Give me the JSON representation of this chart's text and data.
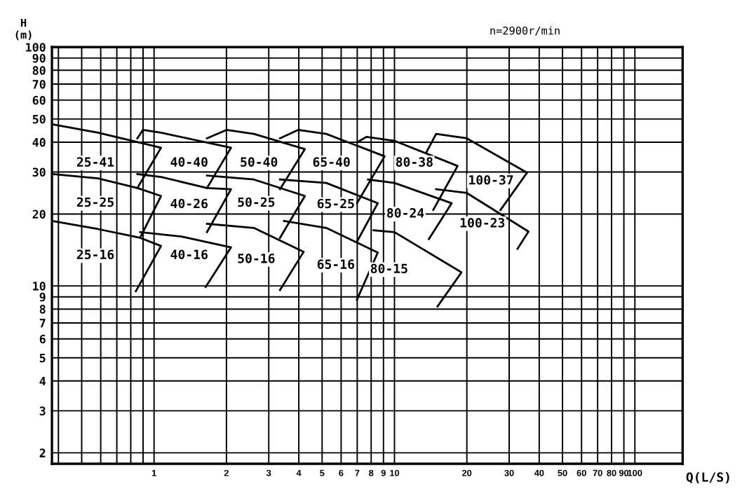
{
  "chart_data": {
    "type": "line",
    "xlabel": "Q(L/S)",
    "ylabel": "H\n(m)",
    "log": "xy",
    "grid": true,
    "marker": "none",
    "line_style": "solid",
    "xlim": [
      0.376,
      158
    ],
    "ylim": [
      1.8,
      100
    ],
    "xticks": [
      {
        "value": 0.4,
        "label": null
      },
      {
        "value": 0.5,
        "label": null
      },
      {
        "value": 0.6,
        "label": null
      },
      {
        "value": 0.7,
        "label": null
      },
      {
        "value": 0.8,
        "label": null
      },
      {
        "value": 0.9,
        "label": null
      },
      1,
      2,
      3,
      4,
      5,
      6,
      7,
      8,
      9,
      10,
      20,
      30,
      40,
      50,
      60,
      70,
      80,
      90,
      100
    ],
    "yticks": [
      2,
      3,
      4,
      5,
      6,
      7,
      8,
      9,
      10,
      20,
      30,
      40,
      50,
      60,
      70,
      80,
      90,
      100
    ],
    "series": [
      {
        "color": "#000000",
        "x": [
          0.376,
          0.585,
          1.069,
          0.852
        ],
        "values": [
          47.5,
          43.8,
          37.9,
          25.7
        ]
      },
      {
        "color": "#000000",
        "x": [
          0.376,
          0.585,
          0.852,
          1.069,
          0.875
        ],
        "values": [
          29.4,
          28.2,
          25.7,
          23.8,
          15.9
        ]
      },
      {
        "color": "#000000",
        "x": [
          0.376,
          0.585,
          0.875,
          1.069,
          0.84
        ],
        "values": [
          18.7,
          17.3,
          15.9,
          14.7,
          9.5
        ]
      },
      {
        "color": "#000000",
        "x": [
          0.852,
          0.898,
          1.069,
          2.09,
          1.66
        ],
        "values": [
          41.5,
          45.0,
          43.8,
          37.9,
          25.7
        ]
      },
      {
        "color": "#000000",
        "x": [
          0.852,
          1.069,
          1.66,
          2.09,
          1.66
        ],
        "values": [
          29.4,
          28.6,
          25.7,
          25.4,
          16.8
        ]
      },
      {
        "color": "#000000",
        "x": [
          0.875,
          1.3,
          2.09,
          1.64
        ],
        "values": [
          16.8,
          16.1,
          14.5,
          9.9
        ]
      },
      {
        "color": "#000000",
        "x": [
          1.66,
          2.0,
          2.6,
          4.24,
          3.34
        ],
        "values": [
          41.5,
          45.0,
          43.3,
          37.4,
          25.4
        ]
      },
      {
        "color": "#000000",
        "x": [
          1.66,
          2.6,
          4.24,
          3.34
        ],
        "values": [
          29.0,
          27.9,
          23.8,
          15.9
        ]
      },
      {
        "color": "#000000",
        "x": [
          1.66,
          2.6,
          4.19,
          3.34
        ],
        "values": [
          18.2,
          17.5,
          13.9,
          9.6
        ]
      },
      {
        "color": "#000000",
        "x": [
          3.34,
          3.97,
          5.2,
          9.1,
          6.98
        ],
        "values": [
          41.5,
          45.0,
          43.3,
          34.9,
          22.2
        ]
      },
      {
        "color": "#000000",
        "x": [
          3.34,
          5.2,
          8.52,
          6.98
        ],
        "values": [
          27.9,
          27.0,
          22.2,
          15.3
        ]
      },
      {
        "color": "#000000",
        "x": [
          3.47,
          5.2,
          8.52,
          6.98
        ],
        "values": [
          18.7,
          17.5,
          13.8,
          8.75
        ]
      },
      {
        "color": "#000000",
        "x": [
          6.98,
          7.65,
          10,
          18.3,
          14.5
        ],
        "values": [
          39.9,
          42.1,
          40.5,
          31.8,
          20.8
        ]
      },
      {
        "color": "#000000",
        "x": [
          7.76,
          10,
          17.3,
          13.9
        ],
        "values": [
          27.9,
          27.0,
          22.2,
          15.7
        ]
      },
      {
        "color": "#000000",
        "x": [
          8.18,
          10,
          19.0,
          15.1
        ],
        "values": [
          17.1,
          16.8,
          11.4,
          8.2
        ]
      },
      {
        "color": "#000000",
        "x": [
          13.6,
          14.9,
          20,
          35.6,
          27.6
        ],
        "values": [
          36.4,
          43.3,
          41.5,
          29.8,
          20.8
        ]
      },
      {
        "color": "#000000",
        "x": [
          14.9,
          20,
          36.1,
          32.5
        ],
        "values": [
          25.4,
          24.5,
          16.9,
          14.3
        ]
      }
    ],
    "annotations": [
      "n=2900r/min",
      {
        "text": "25-41",
        "x": 0.57,
        "y": 32.7
      },
      {
        "text": "40-40",
        "x": 1.4,
        "y": 32.7
      },
      {
        "text": "50-40",
        "x": 2.73,
        "y": 32.7
      },
      {
        "text": "65-40",
        "x": 5.47,
        "y": 32.7
      },
      {
        "text": "80-38",
        "x": 12.1,
        "y": 32.7
      },
      {
        "text": "100-37",
        "x": 25.2,
        "y": 27.5
      },
      {
        "text": "25-25",
        "x": 0.57,
        "y": 22.2
      },
      {
        "text": "40-26",
        "x": 1.4,
        "y": 21.9
      },
      {
        "text": "50-25",
        "x": 2.66,
        "y": 22.2
      },
      {
        "text": "65-25",
        "x": 5.7,
        "y": 21.9
      },
      {
        "text": "80-24",
        "x": 11.1,
        "y": 20.0
      },
      {
        "text": "100-23",
        "x": 23.2,
        "y": 18.2
      },
      {
        "text": "25-16",
        "x": 0.57,
        "y": 13.4
      },
      {
        "text": "40-16",
        "x": 1.4,
        "y": 13.4
      },
      {
        "text": "50-16",
        "x": 2.66,
        "y": 12.9
      },
      {
        "text": "65-16",
        "x": 5.7,
        "y": 12.2
      },
      {
        "text": "80-15",
        "x": 9.5,
        "y": 11.7
      }
    ]
  }
}
